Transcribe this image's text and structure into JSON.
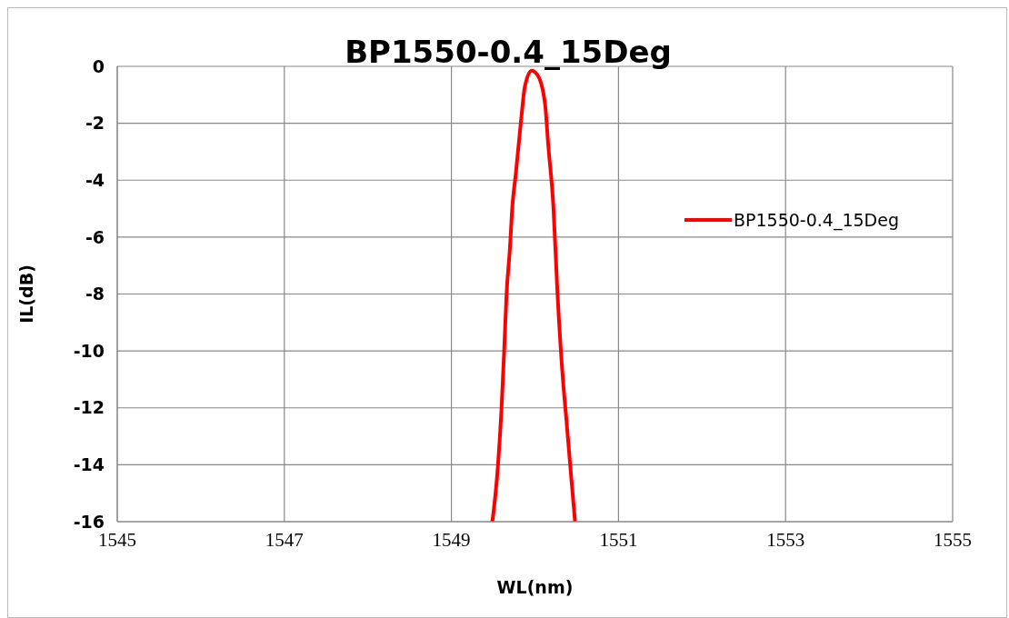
{
  "chart_data": {
    "type": "line",
    "title": "BP1550-0.4_15Deg",
    "xlabel": "WL(nm)",
    "ylabel": "IL(dB)",
    "series": [
      {
        "name": "BP1550-0.4_15Deg",
        "color": "#ff0000",
        "x": [
          1549.49,
          1549.55,
          1549.6,
          1549.63,
          1549.66,
          1549.7,
          1549.73,
          1549.77,
          1549.83,
          1549.88,
          1549.96,
          1550.03,
          1550.12,
          1550.16,
          1550.22,
          1550.27,
          1550.34,
          1550.37,
          1550.43,
          1550.48
        ],
        "values": [
          -16,
          -14.3,
          -12,
          -10.1,
          -8,
          -6.4,
          -4.9,
          -3.8,
          -2,
          -0.7,
          -0.15,
          -0.3,
          -1.3,
          -2.8,
          -4.9,
          -8,
          -11.2,
          -12.2,
          -14.3,
          -16
        ]
      }
    ],
    "xlim": [
      1545,
      1555
    ],
    "xticks": [
      1545,
      1547,
      1549,
      1551,
      1553,
      1555
    ],
    "ylim": [
      -16,
      0
    ],
    "yticks": [
      -16,
      -14,
      -12,
      -10,
      -8,
      -6,
      -4,
      -2,
      0
    ],
    "grid": true,
    "legend": "right",
    "marker": "none",
    "line_style": "solid"
  }
}
